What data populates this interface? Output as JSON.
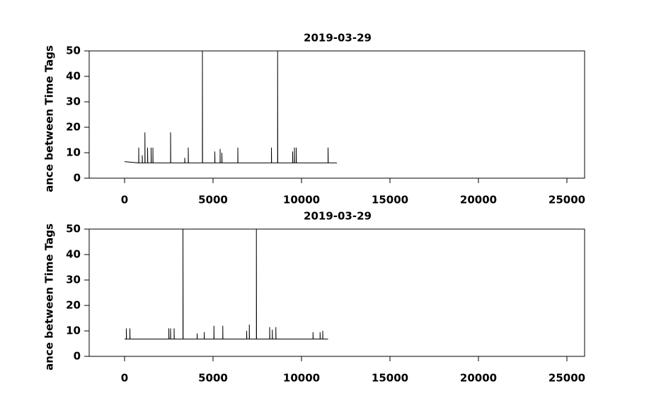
{
  "chart_data": [
    {
      "type": "line",
      "title": "2019-03-29",
      "ylabel": "ance between Time Tags",
      "x": [
        0,
        800,
        800,
        810,
        1000,
        1000,
        1010,
        1150,
        1150,
        1160,
        1300,
        1300,
        1310,
        1500,
        1500,
        1510,
        1600,
        1600,
        1610,
        2600,
        2600,
        2610,
        3400,
        3400,
        3410,
        3600,
        3600,
        3610,
        4400,
        4400,
        4410,
        5100,
        5100,
        5110,
        5400,
        5400,
        5410,
        5500,
        5500,
        5510,
        6400,
        6400,
        6410,
        8300,
        8300,
        8310,
        8650,
        8650,
        8660,
        9500,
        9500,
        9510,
        9600,
        9600,
        9610,
        9700,
        9700,
        9710,
        11500,
        11500,
        11510,
        12000
      ],
      "series": [
        {
          "color": "#000000",
          "values": [
            6.5,
            6,
            12,
            6,
            6,
            9,
            6,
            6,
            18,
            6,
            6,
            12,
            6,
            6,
            12,
            6,
            6,
            12,
            6,
            6,
            18,
            6,
            6,
            8,
            6,
            6,
            12,
            6,
            6,
            50,
            6,
            6,
            10.5,
            6,
            6,
            11.5,
            6,
            6,
            10,
            6,
            6,
            12,
            6,
            6,
            12,
            6,
            6,
            50,
            6,
            6,
            10.5,
            6,
            6,
            12,
            6,
            6,
            12,
            6,
            6,
            12,
            6,
            6
          ]
        }
      ],
      "xlim": [
        -2000,
        26000
      ],
      "xticks": [
        0,
        5000,
        10000,
        15000,
        20000,
        25000
      ],
      "ylim": [
        0,
        50
      ],
      "yticks": [
        0,
        10,
        20,
        30,
        40,
        50
      ]
    },
    {
      "type": "line",
      "title": "2019-03-29",
      "ylabel": "ance between Time Tags",
      "x": [
        0,
        100,
        100,
        110,
        300,
        300,
        310,
        2500,
        2500,
        2510,
        2600,
        2600,
        2610,
        2800,
        2800,
        2810,
        3300,
        3300,
        3310,
        4100,
        4100,
        4110,
        4500,
        4500,
        4510,
        5050,
        5050,
        5060,
        5550,
        5550,
        5560,
        6900,
        6900,
        6910,
        7050,
        7050,
        7060,
        7450,
        7450,
        7460,
        8200,
        8200,
        8210,
        8350,
        8350,
        8360,
        8550,
        8550,
        8560,
        10650,
        10650,
        10660,
        11050,
        11050,
        11060,
        11200,
        11200,
        11210,
        11500
      ],
      "series": [
        {
          "color": "#000000",
          "values": [
            6.8,
            6.8,
            11,
            6.8,
            6.8,
            11,
            6.8,
            6.8,
            11,
            6.8,
            6.8,
            11,
            6.8,
            6.8,
            11,
            6.8,
            6.8,
            50,
            6.8,
            6.8,
            9,
            6.8,
            6.8,
            9.5,
            6.8,
            6.8,
            12,
            6.8,
            6.8,
            12,
            6.8,
            6.8,
            10,
            6.8,
            6.8,
            12.5,
            6.8,
            6.8,
            50,
            6.8,
            6.8,
            11.5,
            6.8,
            6.8,
            10.5,
            6.8,
            6.8,
            11.5,
            6.8,
            6.8,
            9.5,
            6.8,
            6.8,
            9.5,
            6.8,
            6.8,
            10,
            6.8,
            6.8
          ]
        }
      ],
      "xlim": [
        -2000,
        26000
      ],
      "xticks": [
        0,
        5000,
        10000,
        15000,
        20000,
        25000
      ],
      "ylim": [
        0,
        50
      ],
      "yticks": [
        0,
        10,
        20,
        30,
        40,
        50
      ]
    }
  ]
}
